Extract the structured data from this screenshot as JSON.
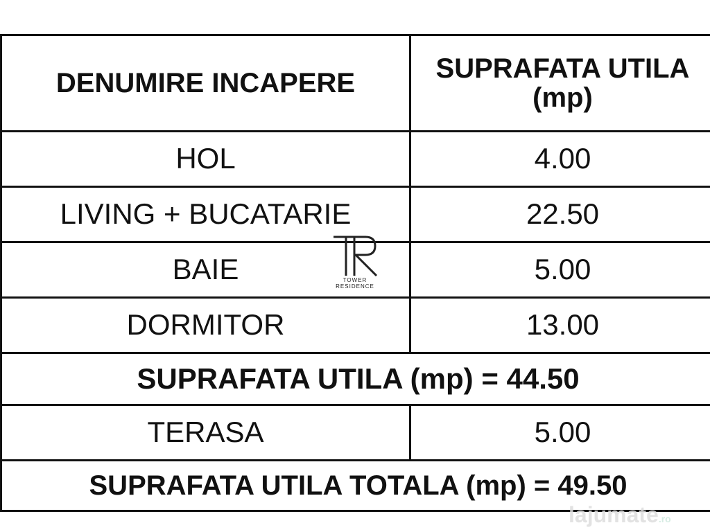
{
  "table": {
    "header": {
      "col1": "DENUMIRE INCAPERE",
      "col2_line1": "SUPRAFATA UTILA",
      "col2_line2": "(mp)"
    },
    "rows": [
      {
        "name": "HOL",
        "area": "4.00"
      },
      {
        "name": "LIVING + BUCATARIE",
        "area": "22.50"
      },
      {
        "name": "BAIE",
        "area": "5.00"
      },
      {
        "name": "DORMITOR",
        "area": "13.00"
      }
    ],
    "subtotal": "SUPRAFATA UTILA (mp) = 44.50",
    "terrace": {
      "name": "TERASA",
      "area": "5.00"
    },
    "total": "SUPRAFATA UTILA TOTALA (mp) = 49.50"
  },
  "logo": {
    "mark": "TR",
    "line1": "TOWER",
    "line2": "RESIDENCE"
  },
  "watermark": {
    "text": "lajumate",
    "suffix": ".ro"
  }
}
